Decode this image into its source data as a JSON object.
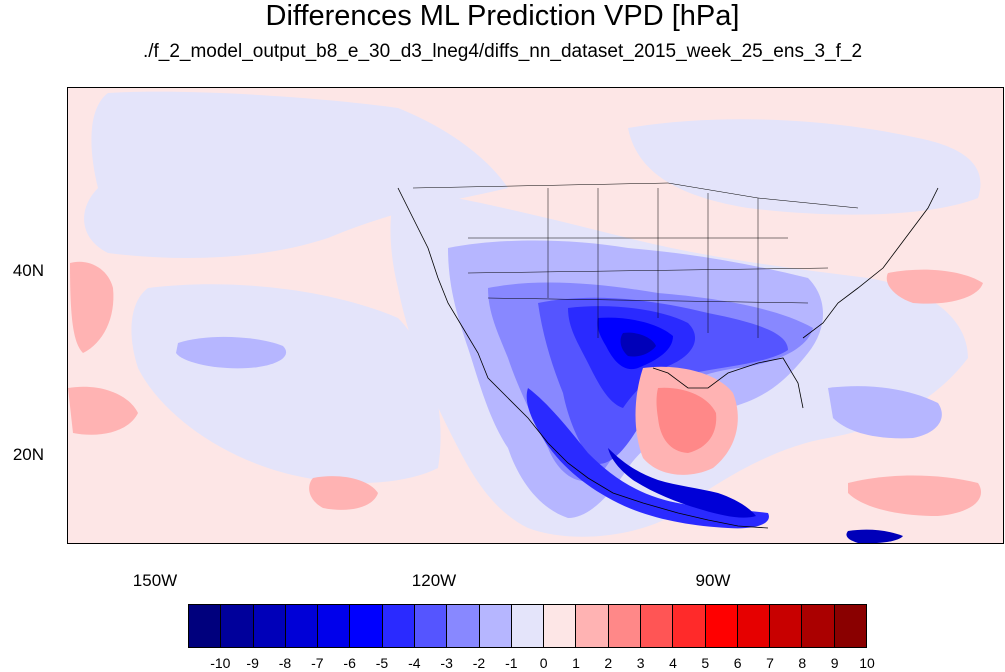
{
  "title": "Differences ML Prediction VPD [hPa]",
  "subtitle": "./f_2_model_output_b8_e_30_d3_lneg4/diffs_nn_dataset_2015_week_25_ens_3_f_2",
  "lat_labels": [
    "40N",
    "20N"
  ],
  "lon_labels": [
    "150W",
    "120W",
    "90W"
  ],
  "colorbar": {
    "labels": [
      "-10",
      "-9",
      "-8",
      "-7",
      "-6",
      "-5",
      "-4",
      "-3",
      "-2",
      "-1",
      "0",
      "1",
      "2",
      "3",
      "4",
      "5",
      "6",
      "7",
      "8",
      "9",
      "10"
    ],
    "colors": [
      "#00007d",
      "#00009b",
      "#0000b9",
      "#0000d7",
      "#0000eb",
      "#0000ff",
      "#2a2aff",
      "#5555ff",
      "#8888ff",
      "#b6b6ff",
      "#e4e4fa",
      "#fde6e6",
      "#ffb3b3",
      "#ff8888",
      "#ff5555",
      "#ff2a2a",
      "#ff0000",
      "#e60000",
      "#c80000",
      "#aa0000",
      "#8a0000"
    ]
  },
  "field_colors": {
    "background": "#fde6e6",
    "neg1": "#e4e4fa",
    "neg2": "#b6b6ff",
    "neg3": "#8888ff",
    "neg4": "#5555ff",
    "neg5": "#2a2aff",
    "neg6": "#0000ff",
    "neg7": "#0000d7",
    "neg8": "#0000b9",
    "pos1": "#ffb3b3",
    "pos2": "#ff8888",
    "pos3": "#ff5555"
  }
}
